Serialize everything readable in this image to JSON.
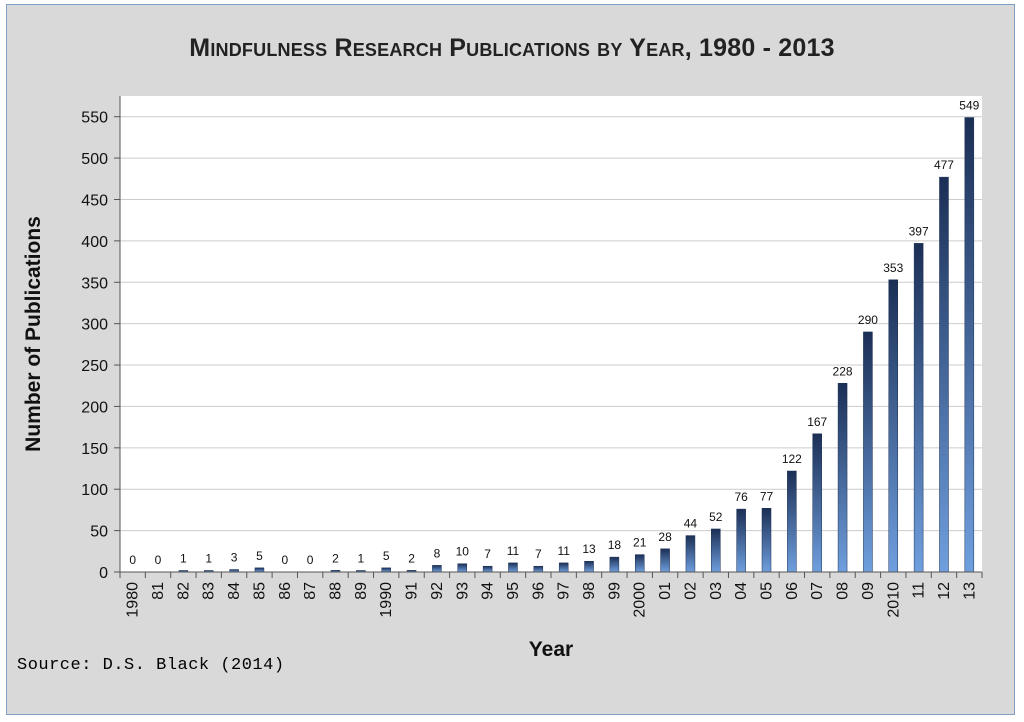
{
  "title": "Mindfulness Research Publications by Year, 1980 - 2013",
  "source": "Source: D.S. Black (2014)",
  "colors": {
    "background": "#d9d9d9",
    "plot_area": "#ffffff",
    "bar_top": "#1b2f55",
    "bar_bottom": "#6f9fde",
    "gridline": "#cccccc",
    "frame": "#7f9fc4"
  },
  "chart_data": {
    "type": "bar",
    "title": "Mindfulness Research Publications by Year, 1980 - 2013",
    "xlabel": "Year",
    "ylabel": "Number of Publications",
    "ylim": [
      0,
      575
    ],
    "yticks": [
      0,
      50,
      100,
      150,
      200,
      250,
      300,
      350,
      400,
      450,
      500,
      550
    ],
    "grid": true,
    "legend": "none",
    "categories": [
      "1980",
      "81",
      "82",
      "83",
      "84",
      "85",
      "86",
      "87",
      "88",
      "89",
      "1990",
      "91",
      "92",
      "93",
      "94",
      "95",
      "96",
      "97",
      "98",
      "99",
      "2000",
      "01",
      "02",
      "03",
      "04",
      "05",
      "06",
      "07",
      "08",
      "09",
      "2010",
      "11",
      "12",
      "13"
    ],
    "values": [
      0,
      0,
      1,
      1,
      3,
      5,
      0,
      0,
      2,
      1,
      5,
      2,
      8,
      10,
      7,
      11,
      7,
      11,
      13,
      18,
      21,
      28,
      44,
      52,
      76,
      77,
      122,
      167,
      228,
      290,
      353,
      397,
      477,
      549
    ],
    "data_labels": [
      "0",
      "0",
      "1",
      "1",
      "3",
      "5",
      "0",
      "0",
      "2",
      "1",
      "5",
      "2",
      "8",
      "10",
      "7",
      "11",
      "7",
      "11",
      "13",
      "18",
      "21",
      "28",
      "44",
      "52",
      "76",
      "77",
      "122",
      "167",
      "228",
      "290",
      "353",
      "397",
      "477",
      "549"
    ]
  }
}
